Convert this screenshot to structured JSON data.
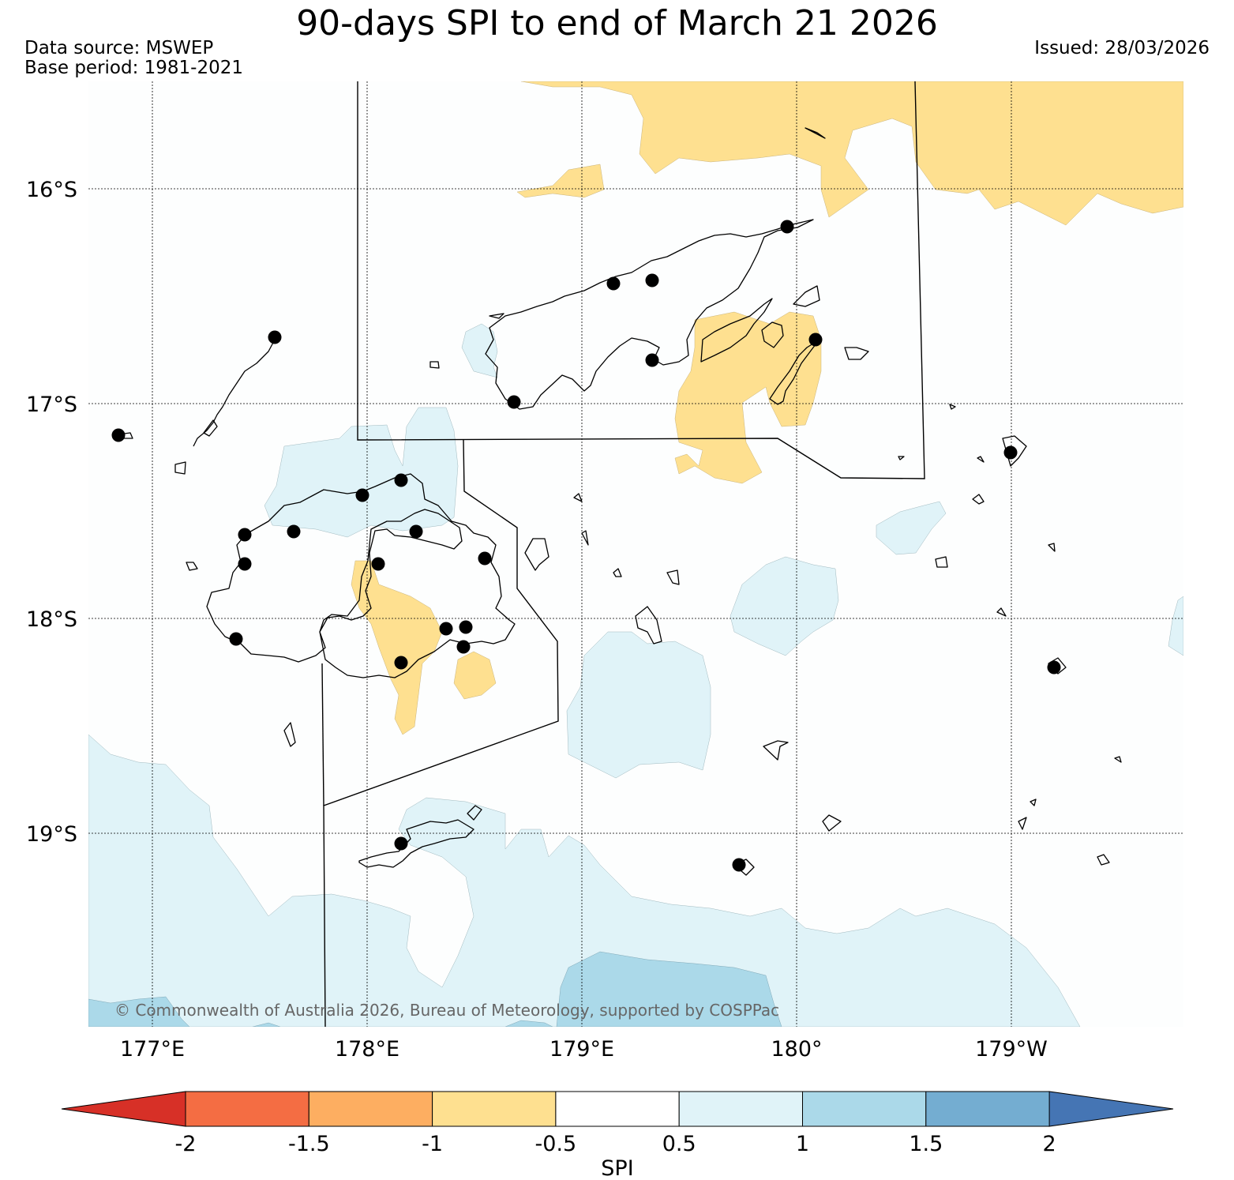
{
  "header": {
    "title": "90-days SPI to end of March 21 2026",
    "data_source": "Data source: MSWEP",
    "base_period": "Base period: 1981-2021",
    "issued": "Issued: 28/03/2026"
  },
  "map": {
    "lat_labels": [
      "16°S",
      "17°S",
      "18°S",
      "19°S"
    ],
    "lon_labels": [
      "177°E",
      "178°E",
      "179°E",
      "180°",
      "179°W"
    ],
    "copyright": "© Commonwealth of Australia 2026, Bureau of Meteorology, supported by COSPPac"
  },
  "colorbar": {
    "ticks": [
      "-2",
      "-1.5",
      "-1",
      "-0.5",
      "0.5",
      "1",
      "1.5",
      "2"
    ],
    "label": "SPI",
    "colors": [
      "#d73027",
      "#f46d43",
      "#fdae61",
      "#fee090",
      "#ffffff",
      "#e0f3f8",
      "#abd9e9",
      "#74add1",
      "#4575b4"
    ]
  },
  "colors": {
    "dry_mild": "#fee090",
    "wet_mild": "#e0f3f8",
    "wet_moderate": "#abd9e9"
  }
}
